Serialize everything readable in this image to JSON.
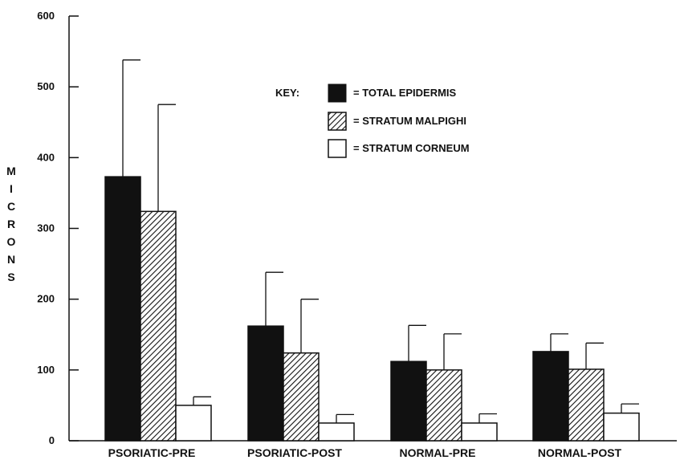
{
  "chart_data": {
    "type": "bar",
    "ylabel": "MICRONS",
    "ylim": [
      0,
      600
    ],
    "yticks": [
      "0",
      "100",
      "200",
      "300",
      "400",
      "500",
      "600"
    ],
    "categories": [
      "PSORIATIC-PRE",
      "PSORIATIC-POST",
      "NORMAL-PRE",
      "NORMAL-POST"
    ],
    "legend_title": "KEY:",
    "legend_placement": "top-center",
    "series": [
      {
        "name": "= TOTAL EPIDERMIS",
        "fill": "solid-black",
        "values": [
          373,
          162,
          112,
          126
        ],
        "errors": [
          165,
          76,
          51,
          25
        ]
      },
      {
        "name": "= STRATUM MALPIGHI",
        "fill": "diagonal-hatch",
        "values": [
          324,
          124,
          100,
          101
        ],
        "errors": [
          151,
          76,
          51,
          37
        ]
      },
      {
        "name": "= STRATUM CORNEUM",
        "fill": "white",
        "values": [
          50,
          25,
          25,
          39
        ],
        "errors": [
          12,
          12,
          13,
          13
        ]
      }
    ],
    "grid": false
  }
}
